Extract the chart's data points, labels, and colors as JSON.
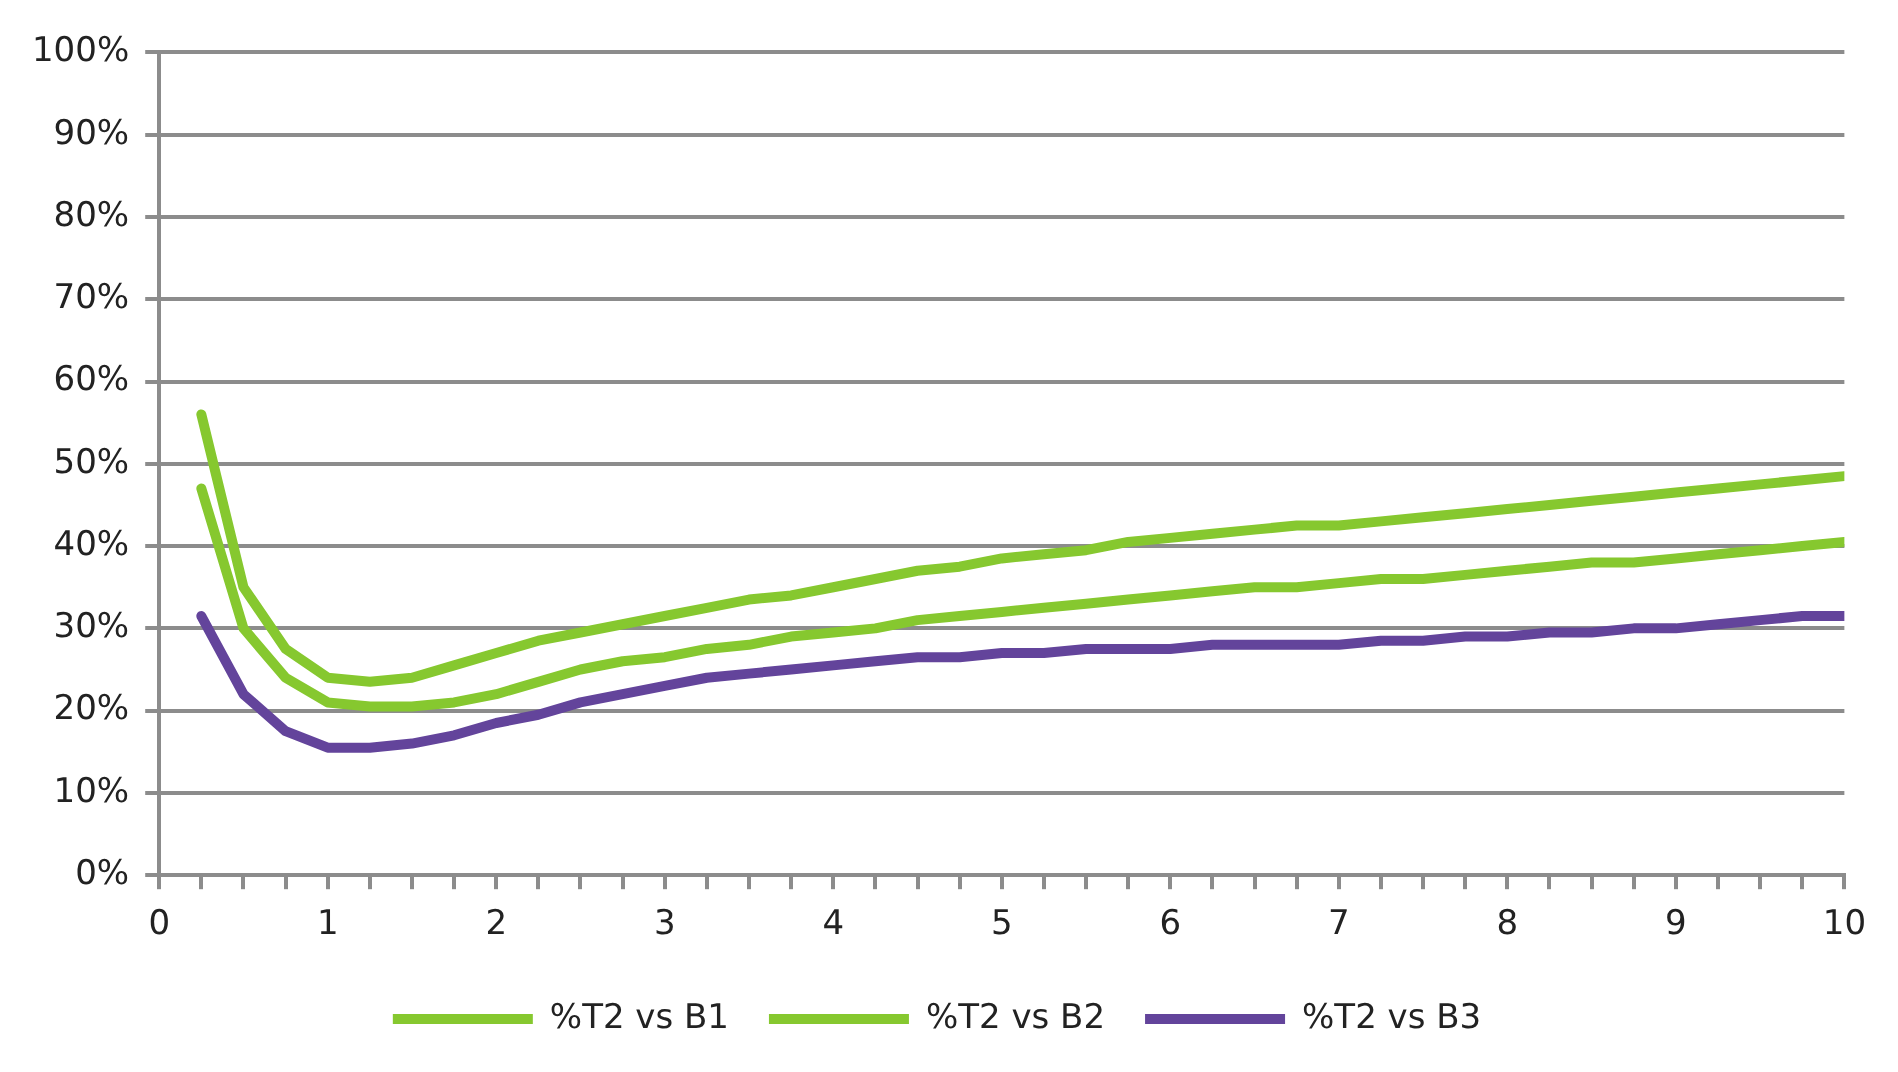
{
  "chart_data": {
    "type": "line",
    "x": [
      0.25,
      0.5,
      0.75,
      1,
      1.25,
      1.5,
      1.75,
      2,
      2.25,
      2.5,
      2.75,
      3,
      3.25,
      3.5,
      3.75,
      4,
      4.25,
      4.5,
      4.75,
      5,
      5.25,
      5.5,
      5.75,
      6,
      6.25,
      6.5,
      6.75,
      7,
      7.25,
      7.5,
      7.75,
      8,
      8.25,
      8.5,
      8.75,
      9,
      9.25,
      9.5,
      9.75,
      10
    ],
    "series": [
      {
        "name": "%T2 vs B1",
        "color": "#86c82f",
        "values": [
          56,
          35,
          27.5,
          24,
          23.5,
          24,
          25.5,
          27,
          28.5,
          29.5,
          30.5,
          31.5,
          32.5,
          33.5,
          34,
          35,
          36,
          37,
          37.5,
          38.5,
          39,
          39.5,
          40.5,
          41,
          41.5,
          42,
          42.5,
          42.5,
          43,
          43.5,
          44,
          44.5,
          45,
          45.5,
          46,
          46.5,
          47,
          47.5,
          48,
          48.5
        ]
      },
      {
        "name": "%T2 vs B2",
        "color": "#86c82f",
        "values": [
          47,
          30,
          24,
          21,
          20.5,
          20.5,
          21,
          22,
          23.5,
          25,
          26,
          26.5,
          27.5,
          28,
          29,
          29.5,
          30,
          31,
          31.5,
          32,
          32.5,
          33,
          33.5,
          34,
          34.5,
          35,
          35,
          35.5,
          36,
          36,
          36.5,
          37,
          37.5,
          38,
          38,
          38.5,
          39,
          39.5,
          40,
          40.5
        ]
      },
      {
        "name": "%T2 vs B3",
        "color": "#63449b",
        "values": [
          31.5,
          22,
          17.5,
          15.5,
          15.5,
          16,
          17,
          18.5,
          19.5,
          21,
          22,
          23,
          24,
          24.5,
          25,
          25.5,
          26,
          26.5,
          26.5,
          27,
          27,
          27.5,
          27.5,
          27.5,
          28,
          28,
          28,
          28,
          28.5,
          28.5,
          29,
          29,
          29.5,
          29.5,
          30,
          30,
          30.5,
          31,
          31.5,
          31.5
        ]
      }
    ],
    "xlim": [
      0,
      10
    ],
    "xticks": [
      0,
      {
        "value": 0.25,
        "label": null
      },
      {
        "value": 0.5,
        "label": null
      },
      {
        "value": 0.75,
        "label": null
      },
      1,
      {
        "value": 1.25,
        "label": null
      },
      {
        "value": 1.5,
        "label": null
      },
      {
        "value": 1.75,
        "label": null
      },
      2,
      {
        "value": 2.25,
        "label": null
      },
      {
        "value": 2.5,
        "label": null
      },
      {
        "value": 2.75,
        "label": null
      },
      3,
      {
        "value": 3.25,
        "label": null
      },
      {
        "value": 3.5,
        "label": null
      },
      {
        "value": 3.75,
        "label": null
      },
      4,
      {
        "value": 4.25,
        "label": null
      },
      {
        "value": 4.5,
        "label": null
      },
      {
        "value": 4.75,
        "label": null
      },
      5,
      {
        "value": 5.25,
        "label": null
      },
      {
        "value": 5.5,
        "label": null
      },
      {
        "value": 5.75,
        "label": null
      },
      6,
      {
        "value": 6.25,
        "label": null
      },
      {
        "value": 6.5,
        "label": null
      },
      {
        "value": 6.75,
        "label": null
      },
      7,
      {
        "value": 7.25,
        "label": null
      },
      {
        "value": 7.5,
        "label": null
      },
      {
        "value": 7.75,
        "label": null
      },
      8,
      {
        "value": 8.25,
        "label": null
      },
      {
        "value": 8.5,
        "label": null
      },
      {
        "value": 8.75,
        "label": null
      },
      9,
      {
        "value": 9.25,
        "label": null
      },
      {
        "value": 9.5,
        "label": null
      },
      {
        "value": 9.75,
        "label": null
      },
      10
    ],
    "ylim": [
      0,
      100
    ],
    "yticks": [
      {
        "value": 0,
        "label": "0%"
      },
      {
        "value": 10,
        "label": "10%"
      },
      {
        "value": 20,
        "label": "20%"
      },
      {
        "value": 30,
        "label": "30%"
      },
      {
        "value": 40,
        "label": "40%"
      },
      {
        "value": 50,
        "label": "50%"
      },
      {
        "value": 60,
        "label": "60%"
      },
      {
        "value": 70,
        "label": "70%"
      },
      {
        "value": 80,
        "label": "80%"
      },
      {
        "value": 90,
        "label": "90%"
      },
      {
        "value": 100,
        "label": "100%"
      }
    ],
    "grid": "y",
    "legend": "bottom",
    "marker": "none",
    "line_style": "solid"
  }
}
